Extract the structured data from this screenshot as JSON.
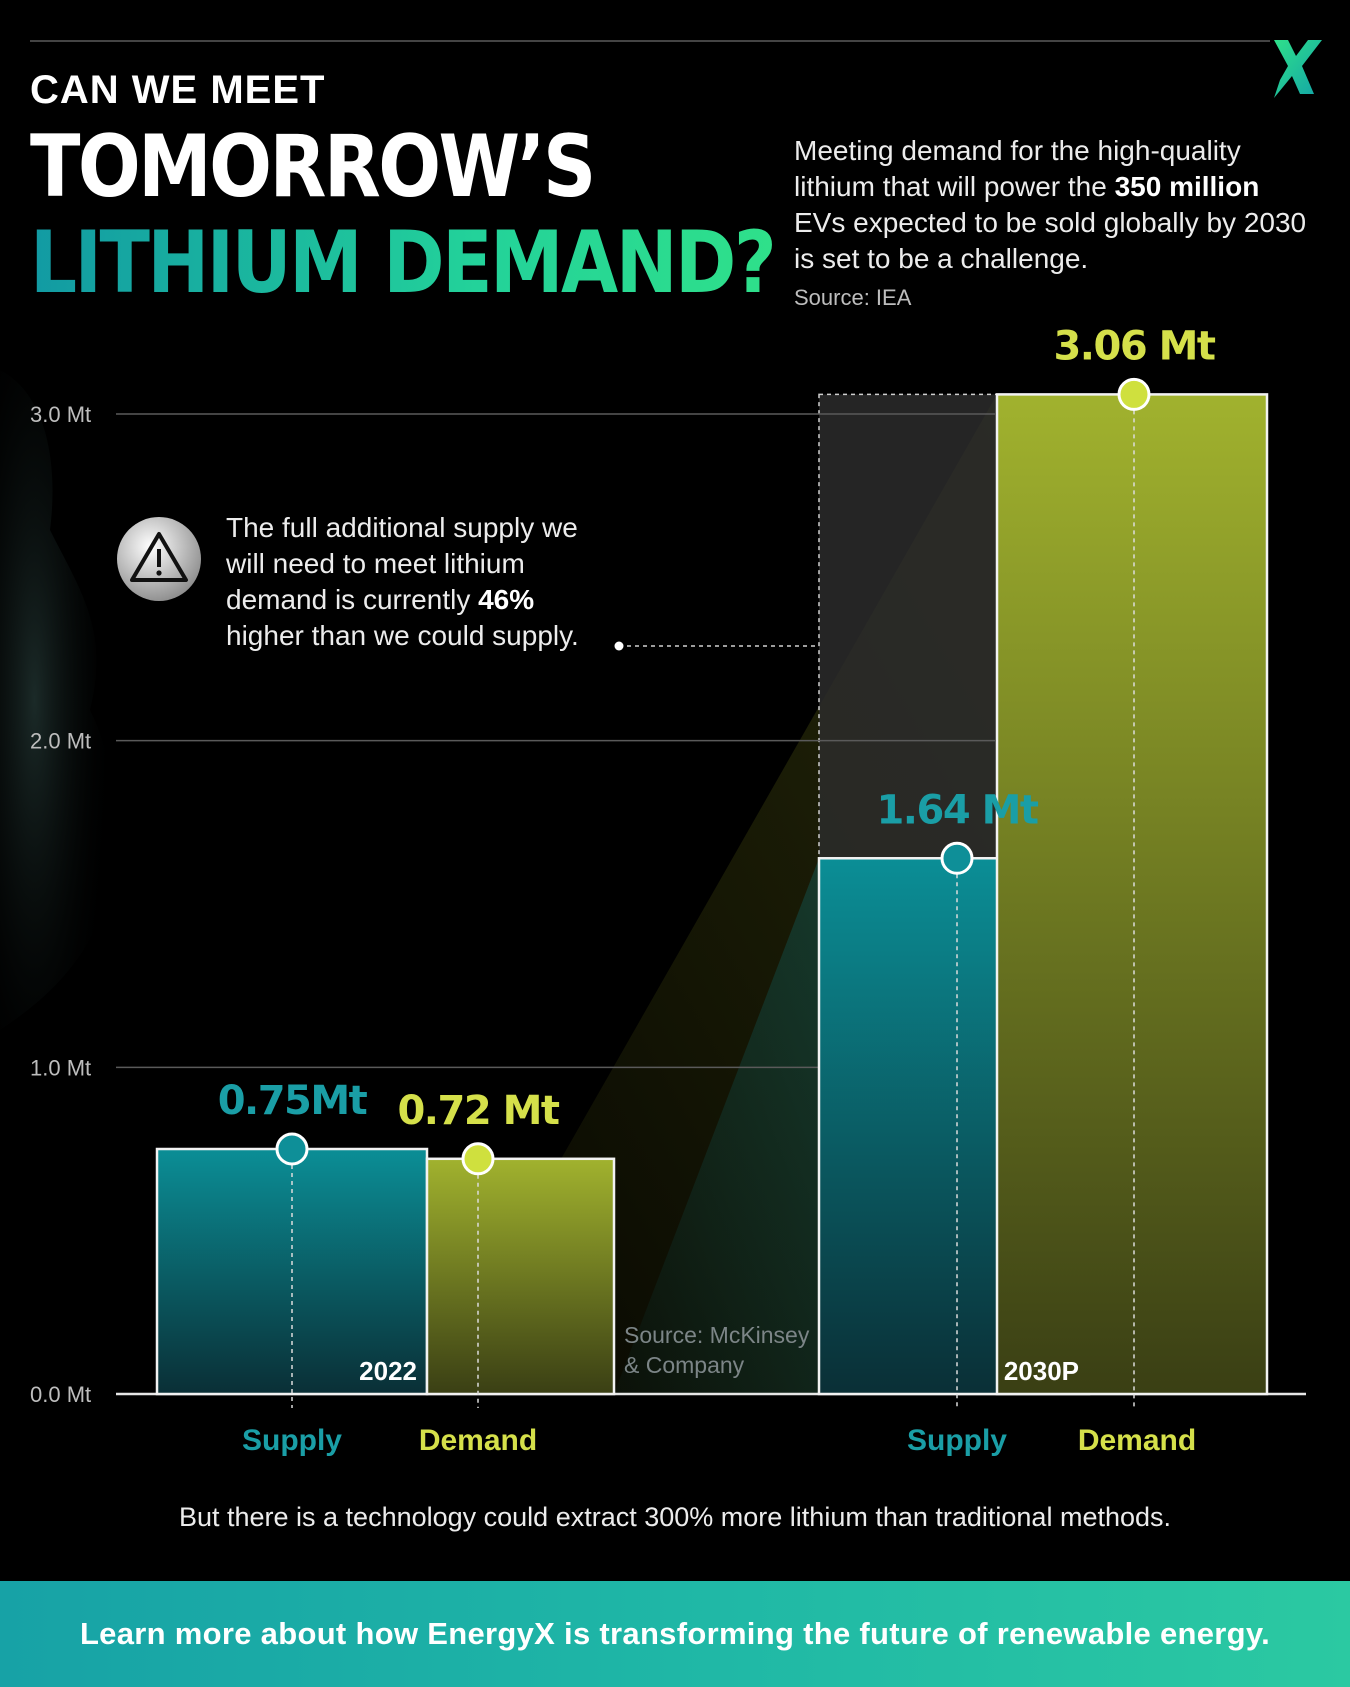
{
  "header": {
    "kicker": "CAN WE MEET",
    "title_line1": "TOMORROW’S",
    "title_line2": "LITHIUM DEMAND?",
    "logo_icon": "energyx-x-logo"
  },
  "intro": {
    "text_before": "Meeting demand for the high-quality lithium that will power the ",
    "bold": "350 million",
    "text_after": " EVs expected to be sold globally by 2030 is set to be a challenge.",
    "source": "Source: IEA"
  },
  "callout": {
    "icon": "warning-icon",
    "text_before": "The full additional supply we will need to meet lithium demand is currently ",
    "bold": "46%",
    "text_after": " higher than we could supply."
  },
  "chart_source": {
    "line1": "Source: McKinsey",
    "line2": "& Company"
  },
  "chart_data": {
    "type": "bar",
    "title": "",
    "xlabel": "",
    "ylabel": "",
    "ylim": [
      0,
      3.0
    ],
    "y_ticks": [
      {
        "value": 0.0,
        "label": "0.0 Mt"
      },
      {
        "value": 1.0,
        "label": "1.0 Mt"
      },
      {
        "value": 2.0,
        "label": "2.0 Mt"
      },
      {
        "value": 3.0,
        "label": "3.0 Mt"
      }
    ],
    "categories": [
      "2022",
      "2030P"
    ],
    "series": [
      {
        "name": "Supply",
        "values": [
          0.75,
          1.64
        ],
        "labels": [
          "0.75Mt",
          "1.64 Mt"
        ],
        "color": "#0e8f98"
      },
      {
        "name": "Demand",
        "values": [
          0.72,
          3.06
        ],
        "labels": [
          "0.72 Mt",
          "3.06 Mt"
        ],
        "color": "#a3b22e"
      }
    ],
    "grid": true,
    "legend": "none",
    "x_bar_labels": [
      "Supply",
      "Demand",
      "Supply",
      "Demand"
    ]
  },
  "footer": {
    "note": "But there is a technology could extract 300% more lithium than traditional methods.",
    "cta": "Learn more about how EnergyX is transforming the future of renewable energy."
  },
  "colors": {
    "supply": "#0e8f98",
    "supply_label": "#1a9ea6",
    "demand": "#a3b22e",
    "demand_label": "#d5e04a",
    "accent": "#23d29a"
  }
}
